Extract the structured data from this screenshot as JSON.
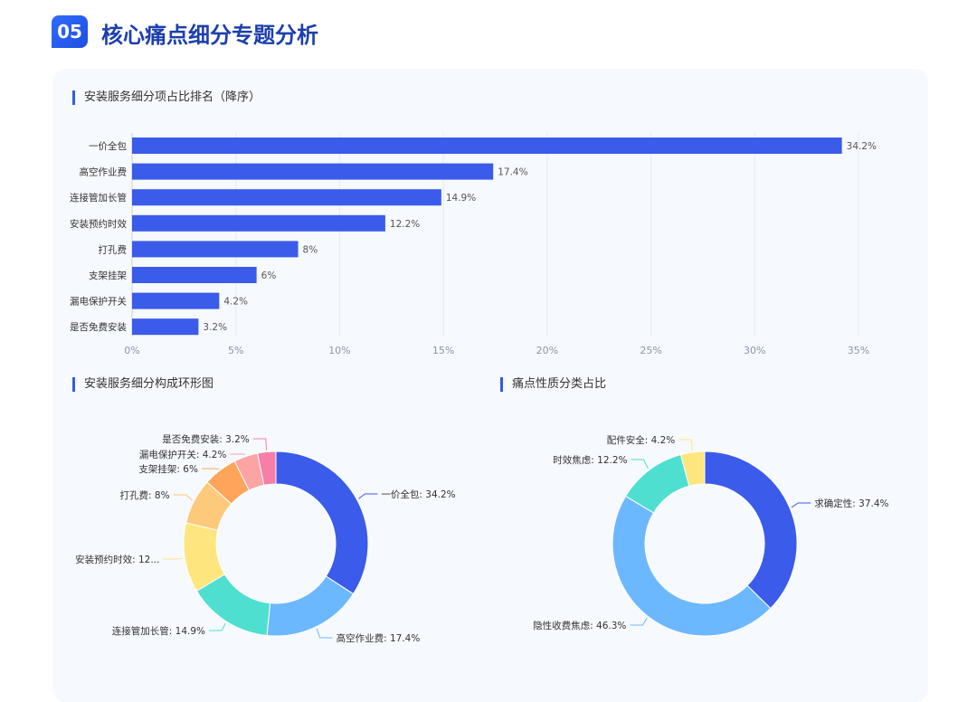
{
  "header": {
    "badge": "05",
    "title": "核心痛点细分专题分析"
  },
  "colors": {
    "bar": "#3b5bea",
    "accent": "#2f6bff"
  },
  "chart_data": [
    {
      "type": "bar",
      "orientation": "horizontal",
      "title": "安装服务细分项占比排名（降序）",
      "categories": [
        "一价全包",
        "高空作业费",
        "连接管加长管",
        "安装预约时效",
        "打孔费",
        "支架挂架",
        "漏电保护开关",
        "是否免费安装"
      ],
      "values": [
        34.2,
        17.4,
        14.9,
        12.2,
        8,
        6,
        4.2,
        3.2
      ],
      "data_labels": [
        "34.2%",
        "17.4%",
        "14.9%",
        "12.2%",
        "8%",
        "6%",
        "4.2%",
        "3.2%"
      ],
      "xticks": [
        "0%",
        "5%",
        "10%",
        "15%",
        "20%",
        "25%",
        "30%",
        "35%"
      ],
      "xlim": [
        0,
        35
      ],
      "grid": true
    },
    {
      "type": "pie",
      "donut": true,
      "title": "安装服务细分构成环形图",
      "slices": [
        {
          "label": "一价全包: 34.2%",
          "value": 34.2,
          "color": "#3b5bea"
        },
        {
          "label": "高空作业费: 17.4%",
          "value": 17.4,
          "color": "#6cb8ff"
        },
        {
          "label": "连接管加长管: 14.9%",
          "value": 14.9,
          "color": "#4fdfd0"
        },
        {
          "label": "安装预约时效: 12...",
          "value": 12.2,
          "color": "#fee57e"
        },
        {
          "label": "打孔费: 8%",
          "value": 8,
          "color": "#fdc97a"
        },
        {
          "label": "支架挂架: 6%",
          "value": 6,
          "color": "#fea55b"
        },
        {
          "label": "漏电保护开关: 4.2%",
          "value": 4.2,
          "color": "#fca3a3"
        },
        {
          "label": "是否免费安装: 3.2%",
          "value": 3.2,
          "color": "#f77ea9"
        }
      ]
    },
    {
      "type": "pie",
      "donut": true,
      "title": "痛点性质分类占比",
      "slices": [
        {
          "label": "求确定性: 37.4%",
          "value": 37.4,
          "color": "#3b5bea"
        },
        {
          "label": "隐性收费焦虑: 46.3%",
          "value": 46.3,
          "color": "#6cb8ff"
        },
        {
          "label": "时效焦虑: 12.2%",
          "value": 12.2,
          "color": "#4fdfd0"
        },
        {
          "label": "配件安全: 4.2%",
          "value": 4.2,
          "color": "#fee57e"
        }
      ]
    }
  ]
}
